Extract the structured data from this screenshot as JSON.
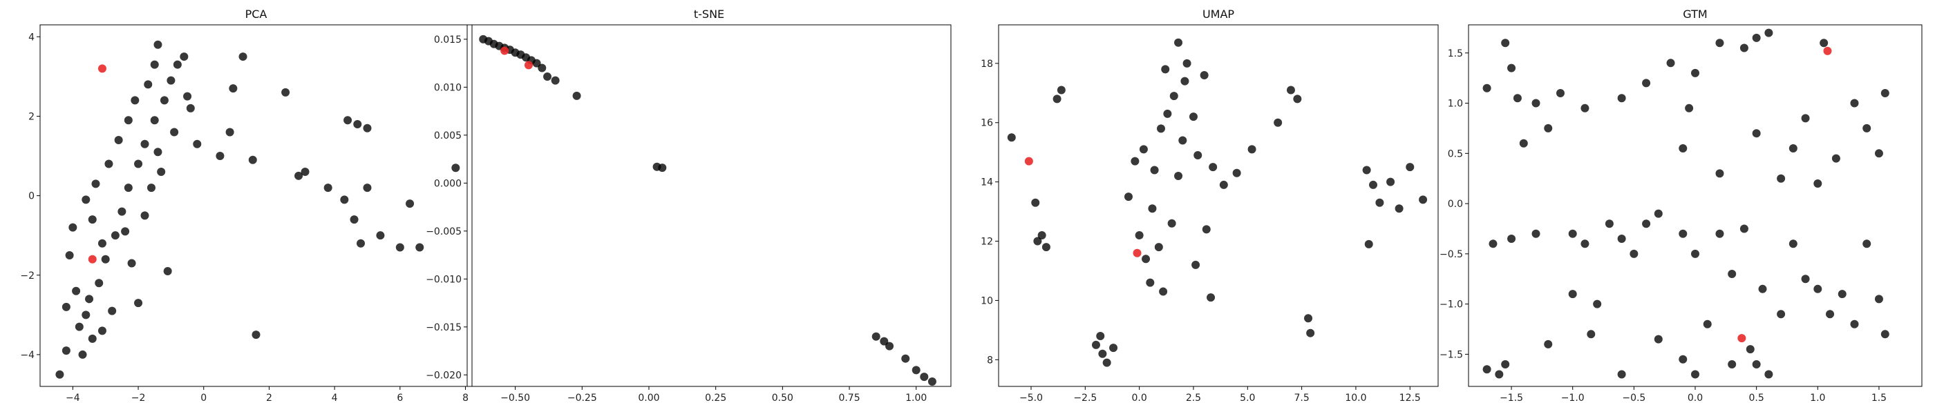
{
  "chart_data": [
    {
      "type": "scatter",
      "title": "PCA",
      "xlabel": "",
      "ylabel": "",
      "xlim": [
        -5.0,
        8.2
      ],
      "ylim": [
        -4.8,
        4.3
      ],
      "xticks": [
        -4,
        -2,
        0,
        2,
        4,
        6,
        8
      ],
      "yticks": [
        -4,
        -2,
        0,
        2,
        4
      ],
      "grid": false,
      "series": [
        {
          "color": "#000000",
          "points": [
            [
              -4.4,
              -4.5
            ],
            [
              -4.2,
              -3.9
            ],
            [
              -3.8,
              -3.3
            ],
            [
              -3.5,
              -2.6
            ],
            [
              -3.2,
              -2.2
            ],
            [
              -3.0,
              -1.6
            ],
            [
              -2.7,
              -1.0
            ],
            [
              -2.5,
              -0.4
            ],
            [
              -2.3,
              0.2
            ],
            [
              -2.0,
              0.8
            ],
            [
              -1.8,
              1.3
            ],
            [
              -1.5,
              1.9
            ],
            [
              -1.2,
              2.4
            ],
            [
              -1.0,
              2.9
            ],
            [
              -0.8,
              3.3
            ],
            [
              -1.4,
              3.8
            ],
            [
              -3.4,
              -3.6
            ],
            [
              -3.9,
              -2.4
            ],
            [
              -2.8,
              -2.9
            ],
            [
              -2.2,
              -1.7
            ],
            [
              -1.8,
              -0.5
            ],
            [
              -1.3,
              0.6
            ],
            [
              -0.9,
              1.6
            ],
            [
              -0.4,
              2.2
            ],
            [
              -0.2,
              1.3
            ],
            [
              0.5,
              1.0
            ],
            [
              0.8,
              1.6
            ],
            [
              0.9,
              2.7
            ],
            [
              1.2,
              3.5
            ],
            [
              1.5,
              0.9
            ],
            [
              2.5,
              2.6
            ],
            [
              2.9,
              0.5
            ],
            [
              3.1,
              0.6
            ],
            [
              3.8,
              0.2
            ],
            [
              4.3,
              -0.1
            ],
            [
              4.6,
              -0.6
            ],
            [
              4.8,
              -1.2
            ],
            [
              5.0,
              0.2
            ],
            [
              5.4,
              -1.0
            ],
            [
              6.0,
              -1.3
            ],
            [
              6.3,
              -0.2
            ],
            [
              6.6,
              -1.3
            ],
            [
              7.7,
              0.7
            ],
            [
              4.7,
              1.8
            ],
            [
              5.0,
              1.7
            ],
            [
              4.4,
              1.9
            ],
            [
              1.6,
              -3.5
            ],
            [
              -3.6,
              -3.0
            ],
            [
              -4.1,
              -1.5
            ],
            [
              -4.0,
              -0.8
            ],
            [
              -3.6,
              -0.1
            ],
            [
              -3.3,
              0.3
            ],
            [
              -2.9,
              0.8
            ],
            [
              -2.6,
              1.4
            ],
            [
              -2.3,
              1.9
            ],
            [
              -2.1,
              2.4
            ],
            [
              -1.7,
              2.8
            ],
            [
              -1.5,
              3.3
            ],
            [
              -0.6,
              3.5
            ],
            [
              -0.5,
              2.5
            ],
            [
              -1.6,
              0.2
            ],
            [
              -1.4,
              1.1
            ],
            [
              -2.4,
              -0.9
            ],
            [
              -3.1,
              -1.2
            ],
            [
              -3.4,
              -0.6
            ],
            [
              -4.2,
              -2.8
            ],
            [
              -3.7,
              -4.0
            ],
            [
              -3.1,
              -3.4
            ],
            [
              -2.0,
              -2.7
            ],
            [
              -1.1,
              -1.9
            ]
          ]
        },
        {
          "color": "#e8292a",
          "points": [
            [
              -3.1,
              3.2
            ],
            [
              -3.4,
              -1.6
            ]
          ]
        }
      ]
    },
    {
      "type": "scatter",
      "title": "t-SNE",
      "xlabel": "",
      "ylabel": "",
      "xlim": [
        -0.68,
        1.13
      ],
      "ylim": [
        -0.0212,
        0.0165
      ],
      "xticks": [
        -0.5,
        -0.25,
        0.0,
        0.25,
        0.5,
        0.75,
        1.0
      ],
      "xtick_labels": [
        "−0.50",
        "−0.25",
        "0.00",
        "0.25",
        "0.50",
        "0.75",
        "1.00"
      ],
      "yticks": [
        0.015,
        0.01,
        0.005,
        0.0,
        -0.005,
        -0.01,
        -0.015,
        -0.02
      ],
      "ytick_labels": [
        "0.015",
        "0.010",
        "0.005",
        "0.000",
        "−0.005",
        "−0.010",
        "−0.015",
        "−0.020"
      ],
      "grid": false,
      "series": [
        {
          "color": "#000000",
          "points": [
            [
              -0.62,
              0.015
            ],
            [
              -0.6,
              0.0148
            ],
            [
              -0.58,
              0.0145
            ],
            [
              -0.56,
              0.0143
            ],
            [
              -0.54,
              0.0141
            ],
            [
              -0.52,
              0.0139
            ],
            [
              -0.5,
              0.0136
            ],
            [
              -0.48,
              0.0134
            ],
            [
              -0.46,
              0.0131
            ],
            [
              -0.44,
              0.0128
            ],
            [
              -0.42,
              0.0125
            ],
            [
              -0.4,
              0.012
            ],
            [
              -0.38,
              0.0111
            ],
            [
              -0.35,
              0.0107
            ],
            [
              -0.27,
              0.0091
            ],
            [
              0.03,
              0.0017
            ],
            [
              0.05,
              0.0016
            ],
            [
              0.85,
              -0.016
            ],
            [
              0.88,
              -0.0165
            ],
            [
              0.9,
              -0.017
            ],
            [
              0.96,
              -0.0183
            ],
            [
              1.0,
              -0.0195
            ],
            [
              1.03,
              -0.0202
            ],
            [
              1.06,
              -0.0207
            ]
          ]
        },
        {
          "color": "#e8292a",
          "points": [
            [
              -0.54,
              0.0138
            ],
            [
              -0.45,
              0.0123
            ]
          ]
        }
      ]
    },
    {
      "type": "scatter",
      "title": "UMAP",
      "xlabel": "",
      "ylabel": "",
      "xlim": [
        -6.5,
        13.8
      ],
      "ylim": [
        7.1,
        19.3
      ],
      "xticks": [
        -5.0,
        -2.5,
        0.0,
        2.5,
        5.0,
        7.5,
        10.0,
        12.5
      ],
      "xtick_labels": [
        "−5.0",
        "−2.5",
        "0.0",
        "2.5",
        "5.0",
        "7.5",
        "10.0",
        "12.5"
      ],
      "yticks": [
        8,
        10,
        12,
        14,
        16,
        18
      ],
      "grid": false,
      "series": [
        {
          "color": "#000000",
          "points": [
            [
              -5.9,
              15.5
            ],
            [
              -4.8,
              13.3
            ],
            [
              -4.7,
              12.0
            ],
            [
              -4.5,
              12.2
            ],
            [
              -4.3,
              11.8
            ],
            [
              -3.8,
              16.8
            ],
            [
              -3.6,
              17.1
            ],
            [
              -2.0,
              8.5
            ],
            [
              -1.7,
              8.2
            ],
            [
              -1.5,
              7.9
            ],
            [
              -1.8,
              8.8
            ],
            [
              -1.2,
              8.4
            ],
            [
              -0.5,
              13.5
            ],
            [
              0.0,
              12.2
            ],
            [
              0.3,
              11.4
            ],
            [
              0.6,
              13.1
            ],
            [
              0.7,
              14.4
            ],
            [
              1.0,
              15.8
            ],
            [
              1.3,
              16.3
            ],
            [
              1.6,
              16.9
            ],
            [
              2.1,
              17.4
            ],
            [
              2.5,
              16.2
            ],
            [
              2.0,
              15.4
            ],
            [
              1.8,
              14.2
            ],
            [
              3.4,
              14.5
            ],
            [
              3.9,
              13.9
            ],
            [
              4.5,
              14.3
            ],
            [
              5.2,
              15.1
            ],
            [
              3.1,
              12.4
            ],
            [
              2.6,
              11.2
            ],
            [
              1.1,
              10.3
            ],
            [
              0.5,
              10.6
            ],
            [
              1.8,
              18.7
            ],
            [
              2.2,
              18.0
            ],
            [
              3.0,
              17.6
            ],
            [
              3.3,
              10.1
            ],
            [
              6.4,
              16.0
            ],
            [
              7.0,
              17.1
            ],
            [
              7.3,
              16.8
            ],
            [
              7.8,
              9.4
            ],
            [
              7.9,
              8.9
            ],
            [
              10.5,
              14.4
            ],
            [
              10.8,
              13.9
            ],
            [
              11.1,
              13.3
            ],
            [
              11.6,
              14.0
            ],
            [
              12.0,
              13.1
            ],
            [
              12.5,
              14.5
            ],
            [
              10.6,
              11.9
            ],
            [
              13.1,
              13.4
            ],
            [
              0.9,
              11.8
            ],
            [
              1.5,
              12.6
            ],
            [
              2.7,
              14.9
            ],
            [
              0.2,
              15.1
            ],
            [
              -0.2,
              14.7
            ],
            [
              1.2,
              17.8
            ]
          ]
        },
        {
          "color": "#e8292a",
          "points": [
            [
              -5.1,
              14.7
            ],
            [
              -0.1,
              11.6
            ]
          ]
        }
      ]
    },
    {
      "type": "scatter",
      "title": "GTM",
      "xlabel": "",
      "ylabel": "",
      "xlim": [
        -1.85,
        1.85
      ],
      "ylim": [
        -1.82,
        1.78
      ],
      "xticks": [
        -1.5,
        -1.0,
        -0.5,
        0.0,
        0.5,
        1.0,
        1.5
      ],
      "xtick_labels": [
        "−1.5",
        "−1.0",
        "−0.5",
        "0.0",
        "0.5",
        "1.0",
        "1.5"
      ],
      "yticks": [
        1.5,
        1.0,
        0.5,
        0.0,
        -0.5,
        -1.0,
        -1.5
      ],
      "ytick_labels": [
        "1.5",
        "1.0",
        "0.5",
        "0.0",
        "−0.5",
        "−1.0",
        "−1.5"
      ],
      "grid": false,
      "series": [
        {
          "color": "#000000",
          "points": [
            [
              -1.7,
              1.15
            ],
            [
              -1.55,
              1.6
            ],
            [
              -1.5,
              1.35
            ],
            [
              -1.45,
              1.05
            ],
            [
              -1.3,
              1.0
            ],
            [
              -1.2,
              0.75
            ],
            [
              -1.4,
              0.6
            ],
            [
              -1.1,
              1.1
            ],
            [
              -0.9,
              0.95
            ],
            [
              -1.65,
              -0.4
            ],
            [
              -1.5,
              -0.35
            ],
            [
              -1.3,
              -0.3
            ],
            [
              -1.0,
              -0.3
            ],
            [
              -0.9,
              -0.4
            ],
            [
              -0.7,
              -0.2
            ],
            [
              -0.6,
              -0.35
            ],
            [
              -0.5,
              -0.5
            ],
            [
              -0.4,
              -0.2
            ],
            [
              -0.3,
              -0.1
            ],
            [
              -0.1,
              -0.3
            ],
            [
              0.0,
              -0.5
            ],
            [
              0.2,
              -0.3
            ],
            [
              0.4,
              -0.25
            ],
            [
              -1.7,
              -1.65
            ],
            [
              -1.6,
              -1.7
            ],
            [
              -1.55,
              -1.6
            ],
            [
              -1.2,
              -1.4
            ],
            [
              -1.0,
              -0.9
            ],
            [
              -0.85,
              -1.3
            ],
            [
              -0.8,
              -1.0
            ],
            [
              -0.6,
              -1.7
            ],
            [
              -0.3,
              -1.35
            ],
            [
              -0.1,
              -1.55
            ],
            [
              0.0,
              -1.7
            ],
            [
              0.1,
              -1.2
            ],
            [
              0.3,
              -1.6
            ],
            [
              0.45,
              -1.45
            ],
            [
              0.5,
              -1.6
            ],
            [
              0.6,
              -1.7
            ],
            [
              0.7,
              -1.1
            ],
            [
              0.9,
              -0.75
            ],
            [
              1.0,
              -0.85
            ],
            [
              1.1,
              -1.1
            ],
            [
              1.2,
              -0.9
            ],
            [
              1.3,
              -1.2
            ],
            [
              1.4,
              -0.4
            ],
            [
              1.5,
              -0.95
            ],
            [
              1.55,
              -1.3
            ],
            [
              1.55,
              1.1
            ],
            [
              1.5,
              0.5
            ],
            [
              1.4,
              0.75
            ],
            [
              1.3,
              1.0
            ],
            [
              1.15,
              0.45
            ],
            [
              1.0,
              0.2
            ],
            [
              0.9,
              0.85
            ],
            [
              0.8,
              0.55
            ],
            [
              0.6,
              1.7
            ],
            [
              0.5,
              1.65
            ],
            [
              0.4,
              1.55
            ],
            [
              0.2,
              1.6
            ],
            [
              0.0,
              1.3
            ],
            [
              -0.2,
              1.4
            ],
            [
              -0.4,
              1.2
            ],
            [
              -0.6,
              1.05
            ],
            [
              -0.1,
              0.55
            ],
            [
              0.2,
              0.3
            ],
            [
              0.5,
              0.7
            ],
            [
              0.7,
              0.25
            ],
            [
              0.3,
              -0.7
            ],
            [
              0.55,
              -0.85
            ],
            [
              0.8,
              -0.4
            ],
            [
              1.05,
              1.6
            ],
            [
              -0.05,
              0.95
            ]
          ]
        },
        {
          "color": "#e8292a",
          "points": [
            [
              1.08,
              1.52
            ],
            [
              0.38,
              -1.34
            ]
          ]
        }
      ]
    }
  ]
}
